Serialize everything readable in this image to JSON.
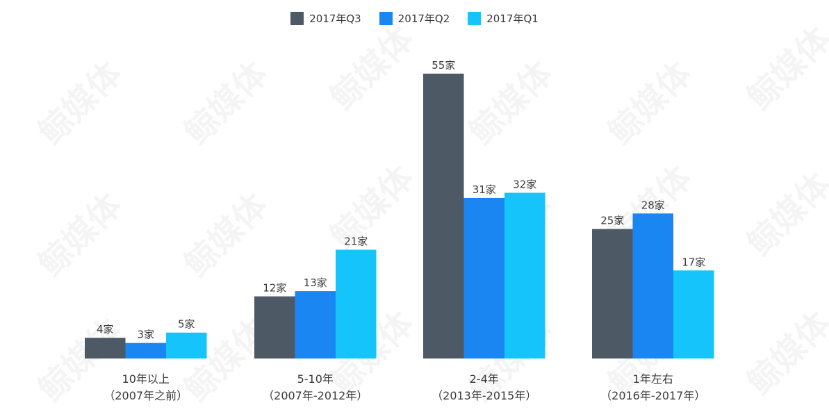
{
  "watermark": "鲸媒体",
  "chart_data": {
    "type": "bar",
    "categories": [
      [
        "10年以上",
        "（2007年之前）"
      ],
      [
        "5-10年",
        "（2007年-2012年）"
      ],
      [
        "2-4年",
        "（2013年-2015年）"
      ],
      [
        "1年左右",
        "（2016年-2017年）"
      ]
    ],
    "series": [
      {
        "name": "2017年Q3",
        "color": "#4d5a66",
        "values": [
          4,
          12,
          55,
          25
        ]
      },
      {
        "name": "2017年Q2",
        "color": "#1a86f2",
        "values": [
          3,
          13,
          31,
          28
        ]
      },
      {
        "name": "2017年Q1",
        "color": "#14c4fa",
        "values": [
          5,
          21,
          32,
          17
        ]
      }
    ],
    "value_suffix": "家",
    "legend_position": "top-center",
    "ylim": [
      0,
      55
    ],
    "grid": false
  }
}
